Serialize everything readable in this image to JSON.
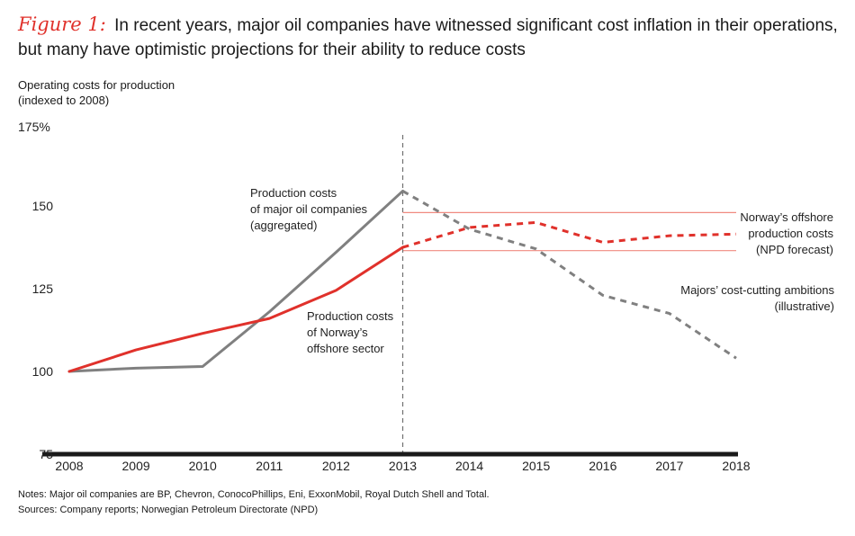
{
  "figure": {
    "label": "Figure 1:",
    "title": "In recent years, major oil companies have witnessed significant cost inflation in their operations, but many have optimistic projections for their ability to reduce costs"
  },
  "notes": {
    "line1": "Notes: Major oil companies are BP, Chevron, ConocoPhillips, Eni, ExxonMobil, Royal Dutch Shell and Total.",
    "line2": "Sources: Company reports; Norwegian Petroleum Directorate (NPD)"
  },
  "colors": {
    "majors": "#808080",
    "norway": "#e0312b",
    "band": "#f08a80",
    "axis": "#1a1a1a",
    "divider": "#707070"
  },
  "chart_data": {
    "type": "line",
    "title": "",
    "ylabel": "Operating costs for production (indexed to 2008)",
    "ylabel_lines": [
      "Operating costs for production",
      "(indexed to 2008)"
    ],
    "xlabel": "",
    "ylim": [
      75,
      175
    ],
    "y_ticks": [
      75,
      100,
      125,
      150
    ],
    "y_tick_labels": [
      "75",
      "100",
      "125",
      "150"
    ],
    "y_top_label": "175%",
    "x": [
      2008,
      2009,
      2010,
      2011,
      2012,
      2013,
      2014,
      2015,
      2016,
      2017,
      2018
    ],
    "x_tick_labels": [
      "2008",
      "2009",
      "2010",
      "2011",
      "2012",
      "2013",
      "2014",
      "2015",
      "2016",
      "2017",
      "2018"
    ],
    "divider_x": 2013,
    "series": [
      {
        "name": "Production costs of major oil companies (aggregated)",
        "color_key": "majors",
        "solid": {
          "x": [
            2008,
            2009,
            2010,
            2011,
            2012,
            2013
          ],
          "y": [
            100,
            101,
            101.5,
            118,
            136,
            154.5
          ]
        },
        "dashed": {
          "x": [
            2013,
            2014,
            2015,
            2016,
            2017,
            2018
          ],
          "y": [
            154.5,
            143,
            137,
            123,
            117.5,
            104
          ]
        }
      },
      {
        "name": "Production costs of Norway's offshore sector",
        "color_key": "norway",
        "solid": {
          "x": [
            2008,
            2009,
            2010,
            2011,
            2012,
            2013
          ],
          "y": [
            100,
            106.5,
            111.5,
            116,
            124.5,
            137.5
          ]
        },
        "dashed": {
          "x": [
            2013,
            2014,
            2015,
            2016,
            2017,
            2018
          ],
          "y": [
            137.5,
            143.5,
            145,
            139,
            141,
            141.5
          ]
        }
      }
    ],
    "band": {
      "name": "Norway's offshore production costs (NPD forecast)",
      "x": [
        2013,
        2018
      ],
      "y_low": 136.5,
      "y_high": 148
    },
    "annotations": {
      "majors": [
        "Production costs",
        "of major oil companies",
        "(aggregated)"
      ],
      "norway": [
        "Production costs",
        "of Norway’s",
        "offshore sector"
      ],
      "forecast": [
        "Norway’s offshore",
        "production costs",
        "(NPD forecast)"
      ],
      "ambitions": [
        "Majors’ cost-cutting ambitions",
        "(illustrative)"
      ]
    }
  }
}
